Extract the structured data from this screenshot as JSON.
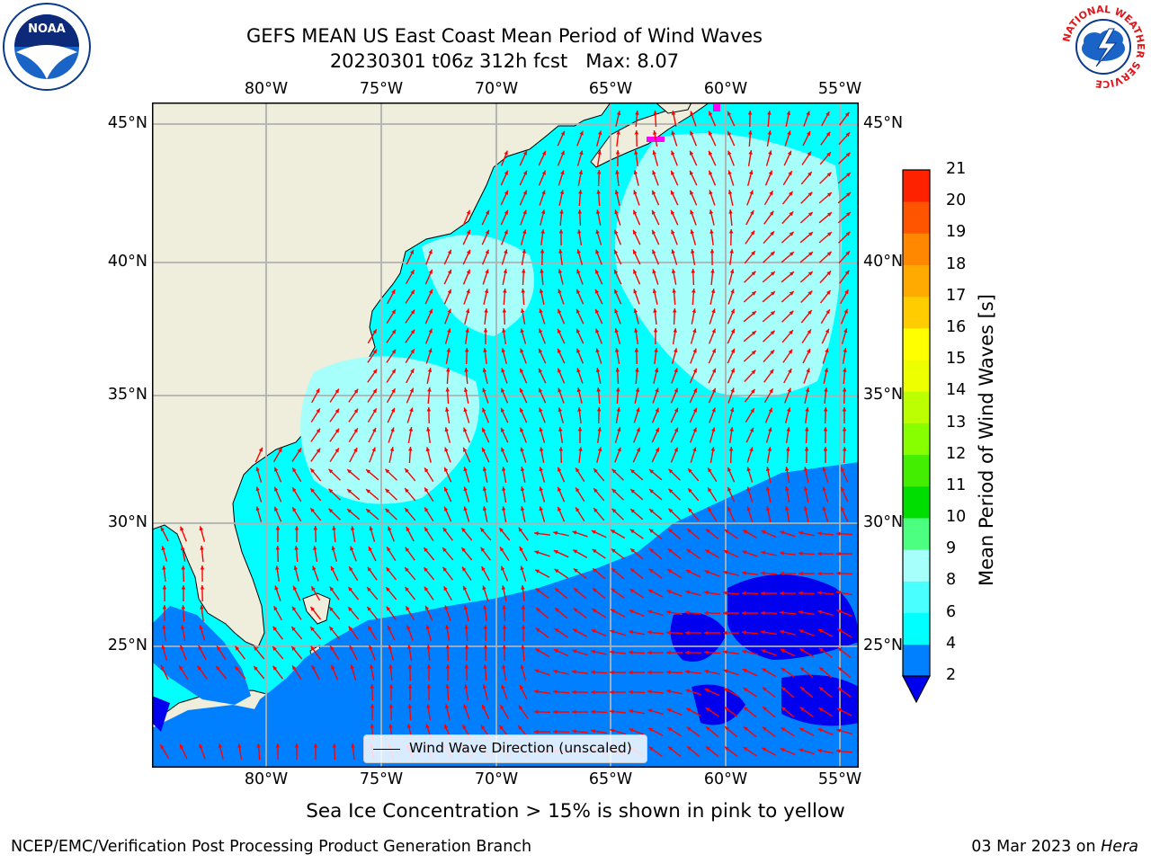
{
  "title": {
    "line1": "GEFS MEAN US East Coast Mean Period of Wind Waves",
    "line2": "20230301 t06z 312h fcst   Max: 8.07"
  },
  "map": {
    "lon_ticks": [
      "80°W",
      "75°W",
      "70°W",
      "65°W",
      "60°W",
      "55°W"
    ],
    "lat_ticks": [
      "45°N",
      "40°N",
      "35°N",
      "30°N",
      "25°N"
    ],
    "land_color": "#efeedc",
    "ocean_base_color": "#00ffff",
    "light_band_color": "#a6fffb",
    "mid_band_color": "#0080ff",
    "deep_band_color": "#0000ee",
    "ice_color": "#ff00ff",
    "arrow_color": "#ff0000",
    "grid_color": "#b0b0b0"
  },
  "legend": {
    "label": "Wind Wave Direction (unscaled)"
  },
  "colorbar": {
    "title": "Mean Period of Wind Waves [s]",
    "labels": [
      "2",
      "4",
      "6",
      "8",
      "9",
      "10",
      "11",
      "12",
      "13",
      "14",
      "15",
      "16",
      "17",
      "18",
      "19",
      "20",
      "21"
    ],
    "colors": [
      "#0080ff",
      "#00ffff",
      "#4affff",
      "#a6fffb",
      "#4dff80",
      "#00dd00",
      "#44ee00",
      "#88ff00",
      "#bbff00",
      "#eeff00",
      "#ffff00",
      "#ffcc00",
      "#ffaa00",
      "#ff8800",
      "#ff5500",
      "#ff2200"
    ],
    "underflow_color": "#0000ee"
  },
  "ice_note": "Sea Ice Concentration > 15% is shown in pink to yellow",
  "footer": {
    "left": "NCEP/EMC/Verification Post Processing Product Generation Branch",
    "date": "03 Mar 2023 on ",
    "machine": "Hera"
  },
  "logos": {
    "noaa": "NOAA",
    "nws": "NATIONAL WEATHER SERVICE"
  }
}
